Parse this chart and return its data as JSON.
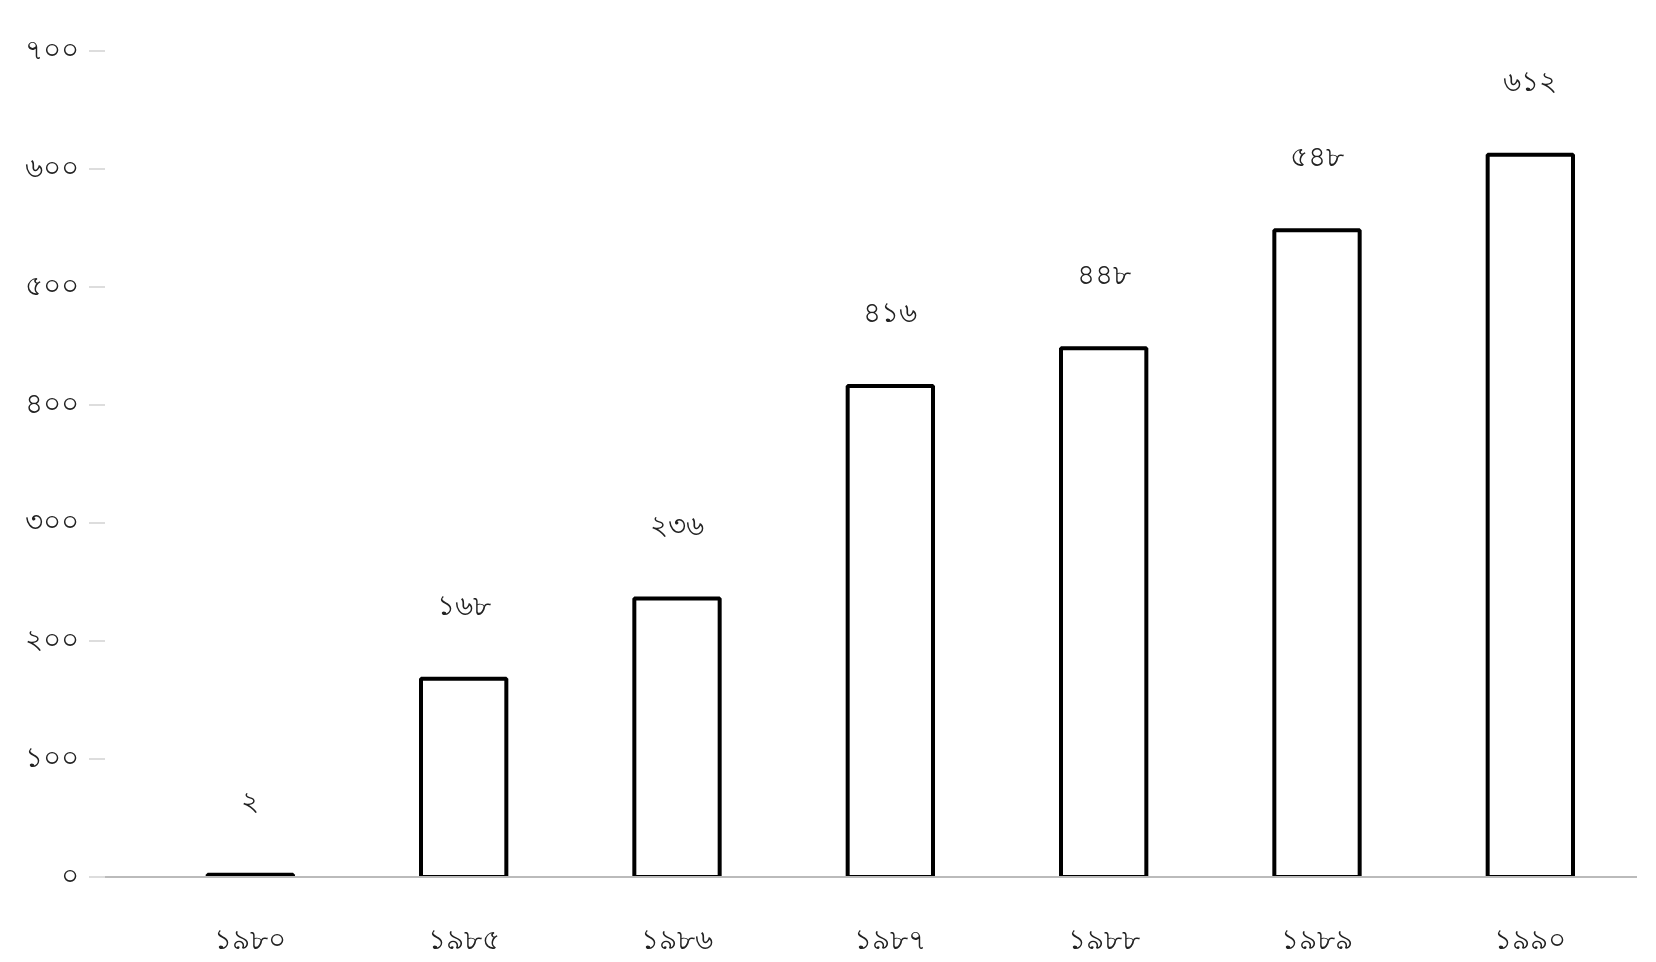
{
  "chart_data": {
    "type": "bar",
    "categories": [
      "১৯৮০",
      "১৯৮৫",
      "১৯৮৬",
      "১৯৮৭",
      "১৯৮৮",
      "১৯৮৯",
      "১৯৯০"
    ],
    "values": [
      2,
      168,
      236,
      416,
      448,
      548,
      612
    ],
    "value_labels": [
      "২",
      "১৬৮",
      "২৩৬",
      "৪১৬",
      "৪৪৮",
      "৫৪৮",
      "৬১২"
    ],
    "color": "#ffffff",
    "ylim": [
      0,
      700
    ],
    "yticks": [
      {
        "value": 0,
        "label": "০"
      },
      {
        "value": 100,
        "label": "১০০"
      },
      {
        "value": 200,
        "label": "২০০"
      },
      {
        "value": 300,
        "label": "৩০০"
      },
      {
        "value": 400,
        "label": "৪০০"
      },
      {
        "value": 500,
        "label": "৫০০"
      },
      {
        "value": 600,
        "label": "৬০০"
      },
      {
        "value": 700,
        "label": "৭০০"
      }
    ],
    "grid": false
  }
}
